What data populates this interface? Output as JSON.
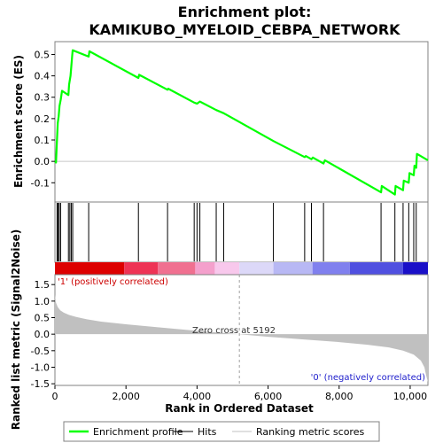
{
  "chart_data": {
    "type": "line",
    "title_line1": "Enrichment plot:",
    "title_line2": "KAMIKUBO_MYELOID_CEBPA_NETWORK",
    "es_panel": {
      "ylabel": "Enrichment score (ES)",
      "ylim": [
        -0.19,
        0.56
      ],
      "yticks": [
        -0.1,
        0.0,
        0.1,
        0.2,
        0.3,
        0.4,
        0.5
      ],
      "ytick_labels": [
        "-0.1",
        "0.0",
        "0.1",
        "0.2",
        "0.3",
        "0.4",
        "0.5"
      ],
      "line_color": "#00ff00",
      "points": [
        [
          0,
          0.0
        ],
        [
          30,
          -0.005
        ],
        [
          55,
          0.09
        ],
        [
          80,
          0.18
        ],
        [
          105,
          0.21
        ],
        [
          130,
          0.26
        ],
        [
          165,
          0.29
        ],
        [
          200,
          0.33
        ],
        [
          380,
          0.31
        ],
        [
          400,
          0.36
        ],
        [
          440,
          0.4
        ],
        [
          460,
          0.44
        ],
        [
          480,
          0.48
        ],
        [
          500,
          0.52
        ],
        [
          950,
          0.49
        ],
        [
          970,
          0.515
        ],
        [
          2350,
          0.39
        ],
        [
          2370,
          0.405
        ],
        [
          3170,
          0.335
        ],
        [
          3190,
          0.34
        ],
        [
          3920,
          0.275
        ],
        [
          4000,
          0.27
        ],
        [
          4080,
          0.28
        ],
        [
          4540,
          0.24
        ],
        [
          4750,
          0.225
        ],
        [
          6150,
          0.095
        ],
        [
          7030,
          0.02
        ],
        [
          7060,
          0.025
        ],
        [
          7220,
          0.01
        ],
        [
          7260,
          0.018
        ],
        [
          7560,
          -0.01
        ],
        [
          7600,
          0.005
        ],
        [
          9180,
          -0.145
        ],
        [
          9200,
          -0.115
        ],
        [
          9570,
          -0.155
        ],
        [
          9590,
          -0.115
        ],
        [
          9800,
          -0.135
        ],
        [
          9820,
          -0.09
        ],
        [
          9960,
          -0.1
        ],
        [
          9980,
          -0.055
        ],
        [
          10100,
          -0.065
        ],
        [
          10120,
          -0.02
        ],
        [
          10170,
          -0.03
        ],
        [
          10190,
          0.035
        ],
        [
          10500,
          0.005
        ]
      ]
    },
    "hits": [
      60,
      90,
      120,
      160,
      380,
      420,
      460,
      500,
      950,
      2350,
      3170,
      3920,
      4000,
      4080,
      4540,
      4750,
      6150,
      7030,
      7220,
      7560,
      9180,
      9570,
      9800,
      9960,
      10100,
      10170
    ],
    "rank_panel": {
      "ylabel": "Ranked list metric (Signal2Noise)",
      "xlabel": "Rank in Ordered Dataset",
      "xlim": [
        0,
        10500
      ],
      "ylim": [
        -1.55,
        1.8
      ],
      "xticks": [
        0,
        2000,
        4000,
        6000,
        8000,
        10000
      ],
      "xtick_labels": [
        "0",
        "2,000",
        "4,000",
        "6,000",
        "8,000",
        "10,000"
      ],
      "yticks": [
        -1.5,
        -1.0,
        -0.5,
        0.0,
        0.5,
        1.0,
        1.5
      ],
      "ytick_labels": [
        "-1.5",
        "-1.0",
        "-0.5",
        "0.0",
        "0.5",
        "1.0",
        "1.5"
      ],
      "zero_cross": 5192,
      "zero_cross_label": "Zero cross at 5192",
      "pos_label": "'1' (positively correlated)",
      "neg_label": "'0' (negatively correlated)",
      "metric_curve": [
        [
          0,
          1.2
        ],
        [
          30,
          0.95
        ],
        [
          80,
          0.82
        ],
        [
          150,
          0.72
        ],
        [
          250,
          0.65
        ],
        [
          400,
          0.58
        ],
        [
          600,
          0.52
        ],
        [
          900,
          0.45
        ],
        [
          1300,
          0.38
        ],
        [
          2000,
          0.3
        ],
        [
          3000,
          0.2
        ],
        [
          4000,
          0.1
        ],
        [
          5192,
          0.0
        ],
        [
          6000,
          -0.08
        ],
        [
          7000,
          -0.16
        ],
        [
          8000,
          -0.24
        ],
        [
          8800,
          -0.32
        ],
        [
          9400,
          -0.4
        ],
        [
          9800,
          -0.5
        ],
        [
          10100,
          -0.62
        ],
        [
          10300,
          -0.8
        ],
        [
          10400,
          -1.0
        ],
        [
          10450,
          -1.25
        ],
        [
          10500,
          -1.45
        ]
      ],
      "fill_color": "#c0c0c0"
    },
    "heatmap_bar": {
      "segments": [
        {
          "from": 0,
          "to": 1950,
          "color": "#dd0000"
        },
        {
          "from": 1950,
          "to": 2900,
          "color": "#ee3355"
        },
        {
          "from": 2900,
          "to": 3950,
          "color": "#f07090"
        },
        {
          "from": 3950,
          "to": 4500,
          "color": "#f4a0cc"
        },
        {
          "from": 4500,
          "to": 5192,
          "color": "#f8c8ec"
        },
        {
          "from": 5192,
          "to": 6150,
          "color": "#dcd8f8"
        },
        {
          "from": 6150,
          "to": 7250,
          "color": "#b8b8f4"
        },
        {
          "from": 7250,
          "to": 8300,
          "color": "#8080ee"
        },
        {
          "from": 8300,
          "to": 9800,
          "color": "#5050e0"
        },
        {
          "from": 9800,
          "to": 10500,
          "color": "#1a10c8"
        }
      ]
    },
    "legend": {
      "items": [
        {
          "label": "Enrichment profile",
          "color": "#00ff00"
        },
        {
          "label": "Hits",
          "color": "#000000"
        },
        {
          "label": "Ranking metric scores",
          "color": "#c0c0c0"
        }
      ]
    }
  }
}
